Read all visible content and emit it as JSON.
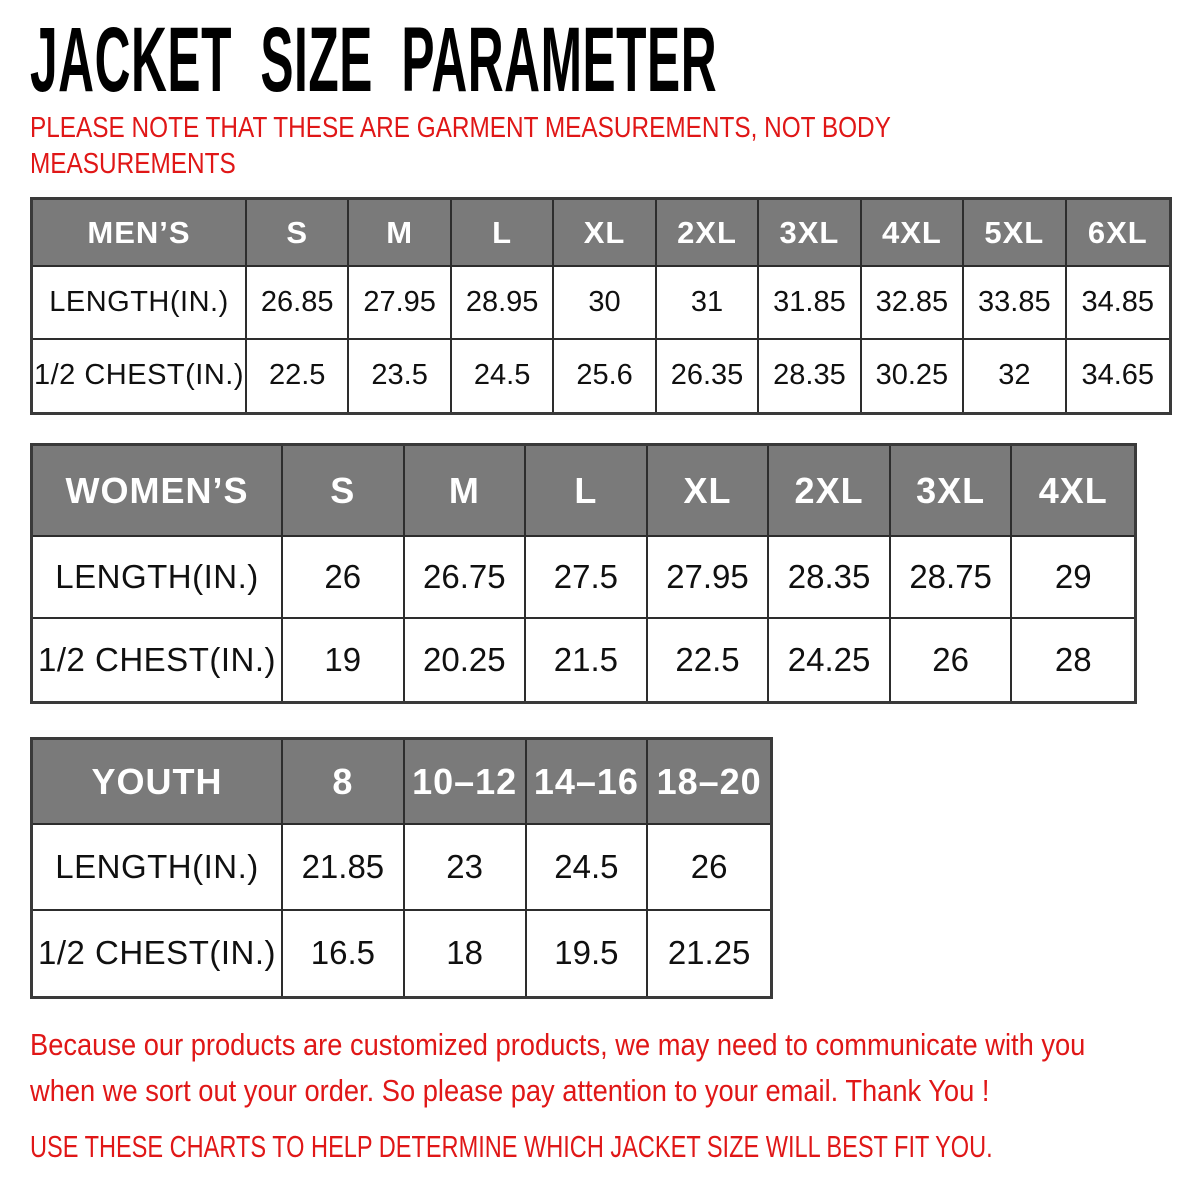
{
  "title": "JACKET SIZE PARAMETER",
  "note": {
    "lines": [
      "PLEASE NOTE THAT THESE ARE GARMENT MEASUREMENTS, NOT BODY",
      "MEASUREMENTS"
    ]
  },
  "tables": [
    {
      "name": "MEN’S",
      "sizes": [
        "S",
        "M",
        "L",
        "XL",
        "2XL",
        "3XL",
        "4XL",
        "5XL",
        "6XL"
      ],
      "rows": [
        {
          "label": "LENGTH(IN.)",
          "values": [
            "26.85",
            "27.95",
            "28.95",
            "30",
            "31",
            "31.85",
            "32.85",
            "33.85",
            "34.85"
          ]
        },
        {
          "label": "1/2 CHEST(IN.)",
          "values": [
            "22.5",
            "23.5",
            "24.5",
            "25.6",
            "26.35",
            "28.35",
            "30.25",
            "32",
            "34.65"
          ]
        }
      ]
    },
    {
      "name": "WOMEN’S",
      "sizes": [
        "S",
        "M",
        "L",
        "XL",
        "2XL",
        "3XL",
        "4XL"
      ],
      "rows": [
        {
          "label": "LENGTH(IN.)",
          "values": [
            "26",
            "26.75",
            "27.5",
            "27.95",
            "28.35",
            "28.75",
            "29"
          ]
        },
        {
          "label": "1/2 CHEST(IN.)",
          "values": [
            "19",
            "20.25",
            "21.5",
            "22.5",
            "24.25",
            "26",
            "28"
          ]
        }
      ]
    },
    {
      "name": "YOUTH",
      "sizes": [
        "8",
        "10–12",
        "14–16",
        "18–20"
      ],
      "rows": [
        {
          "label": "LENGTH(IN.)",
          "values": [
            "21.85",
            "23",
            "24.5",
            "26"
          ]
        },
        {
          "label": "1/2 CHEST(IN.)",
          "values": [
            "16.5",
            "18",
            "19.5",
            "21.25"
          ]
        }
      ]
    }
  ],
  "footer": {
    "lines": [
      "Because our products are customized products, we may need to communicate with you",
      "when we sort out your order. So please pay attention to your email. Thank You !"
    ],
    "advice": "USE THESE CHARTS TO HELP DETERMINE WHICH JACKET SIZE WILL BEST FIT YOU."
  },
  "colors": {
    "header_gray": "#7a7a7a",
    "note_red": "#e01717",
    "border_dark": "#3a3a3a",
    "text_black": "#101010"
  }
}
